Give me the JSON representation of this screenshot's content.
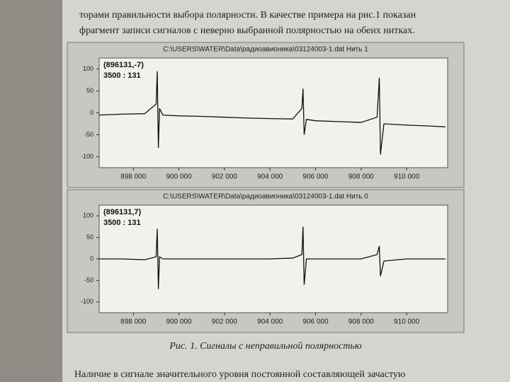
{
  "page": {
    "text_lines": [
      "торами правильности выбора полярности. В качестве примера на рис.1 показан",
      "фрагмент записи сигналов с неверно выбранной полярностью на обеих нитках."
    ],
    "caption": "Рис. 1. Сигналы с неправильной полярностью",
    "bottom_line": "Наличие в сигнале значительного уровня постоянной составляющей зачастую"
  },
  "chart_data": [
    {
      "type": "line",
      "title": "C:\\USERS\\WATER\\Data\\радиоавионика\\03124003-1.dat  Нить 1",
      "annotations": [
        "(896131,-7)",
        "3500 : 131"
      ],
      "x": [
        896500,
        897500,
        898500,
        899000,
        899050,
        899100,
        899150,
        899300,
        900000,
        901000,
        902000,
        903000,
        904000,
        905000,
        905400,
        905450,
        905500,
        905600,
        906000,
        907000,
        908000,
        908700,
        908800,
        908850,
        909000,
        910000,
        911000,
        911700
      ],
      "series": [
        {
          "color": "#111111",
          "values": [
            -5,
            -3,
            -2,
            20,
            95,
            -80,
            10,
            -5,
            -7,
            -8,
            -10,
            -12,
            -13,
            -14,
            10,
            55,
            -50,
            -15,
            -18,
            -20,
            -22,
            -10,
            80,
            -95,
            -25,
            -28,
            -30,
            -32
          ]
        }
      ],
      "xlim": [
        896500,
        911800
      ],
      "ylim": [
        -125,
        125
      ],
      "xticks": [
        {
          "value": 898000,
          "label": "898 000"
        },
        {
          "value": 900000,
          "label": "900 000"
        },
        {
          "value": 902000,
          "label": "902 000"
        },
        {
          "value": 904000,
          "label": "904 000"
        },
        {
          "value": 906000,
          "label": "906 000"
        },
        {
          "value": 908000,
          "label": "908 000"
        },
        {
          "value": 910000,
          "label": "910 000"
        }
      ],
      "yticks": [
        100,
        50,
        0,
        -50,
        -100
      ]
    },
    {
      "type": "line",
      "title": "C:\\USERS\\WATER\\Data\\радиоавионика\\03124003-1.dat  Нить 0",
      "annotations": [
        "(896131,7)",
        "3500 : 131"
      ],
      "x": [
        896500,
        897500,
        898500,
        899000,
        899050,
        899100,
        899150,
        899300,
        900000,
        901000,
        902000,
        903000,
        904000,
        905000,
        905400,
        905450,
        905500,
        905600,
        906000,
        907000,
        908000,
        908700,
        908800,
        908850,
        909000,
        910000,
        911000,
        911700
      ],
      "series": [
        {
          "color": "#111111",
          "values": [
            0,
            0,
            -2,
            5,
            70,
            -70,
            5,
            0,
            0,
            0,
            0,
            0,
            0,
            2,
            10,
            75,
            -60,
            0,
            0,
            0,
            0,
            10,
            30,
            -40,
            -5,
            0,
            0,
            0
          ]
        }
      ],
      "xlim": [
        896500,
        911800
      ],
      "ylim": [
        -125,
        125
      ],
      "xticks": [
        {
          "value": 898000,
          "label": "898 000"
        },
        {
          "value": 900000,
          "label": "900 000"
        },
        {
          "value": 902000,
          "label": "902 000"
        },
        {
          "value": 904000,
          "label": "904 000"
        },
        {
          "value": 906000,
          "label": "906 000"
        },
        {
          "value": 908000,
          "label": "908 000"
        },
        {
          "value": 910000,
          "label": "910 000"
        }
      ],
      "yticks": [
        100,
        50,
        0,
        -50,
        -100
      ]
    }
  ]
}
